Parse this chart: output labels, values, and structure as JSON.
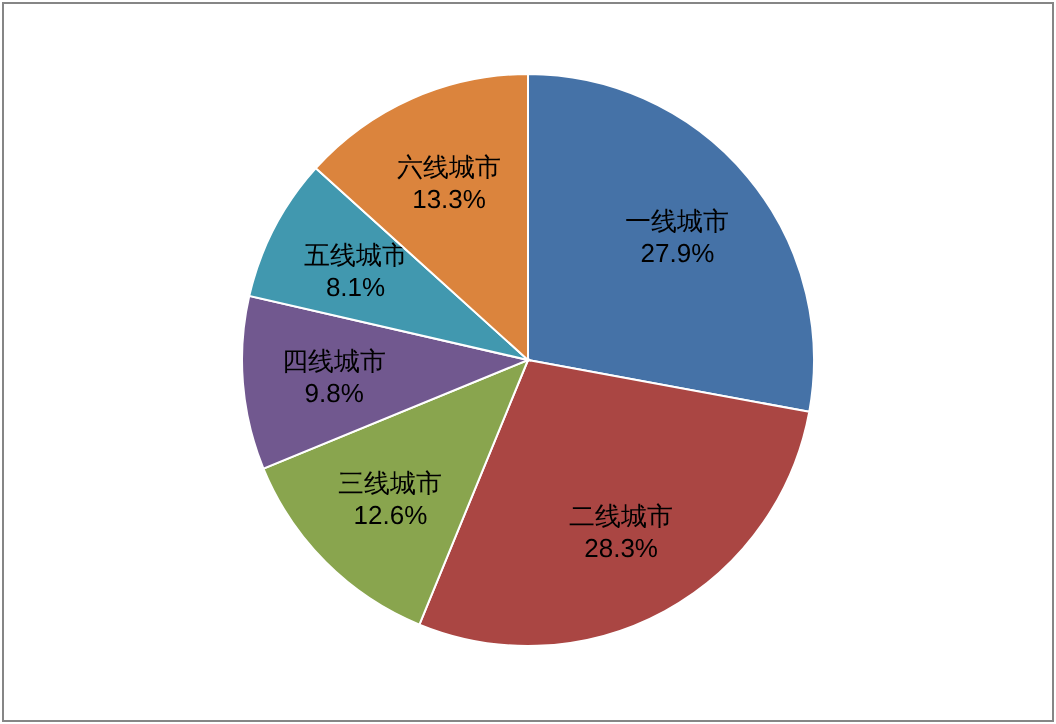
{
  "chart_data": {
    "type": "pie",
    "categories": [
      "一线城市",
      "二线城市",
      "三线城市",
      "四线城市",
      "五线城市",
      "六线城市"
    ],
    "values": [
      27.9,
      28.3,
      12.6,
      9.8,
      8.1,
      13.3
    ],
    "value_labels": [
      "27.9%",
      "28.3%",
      "12.6%",
      "9.8%",
      "8.1%",
      "13.3%"
    ],
    "colors": [
      "#4572a7",
      "#aa4643",
      "#89a54e",
      "#71588f",
      "#4198af",
      "#db843d"
    ]
  }
}
